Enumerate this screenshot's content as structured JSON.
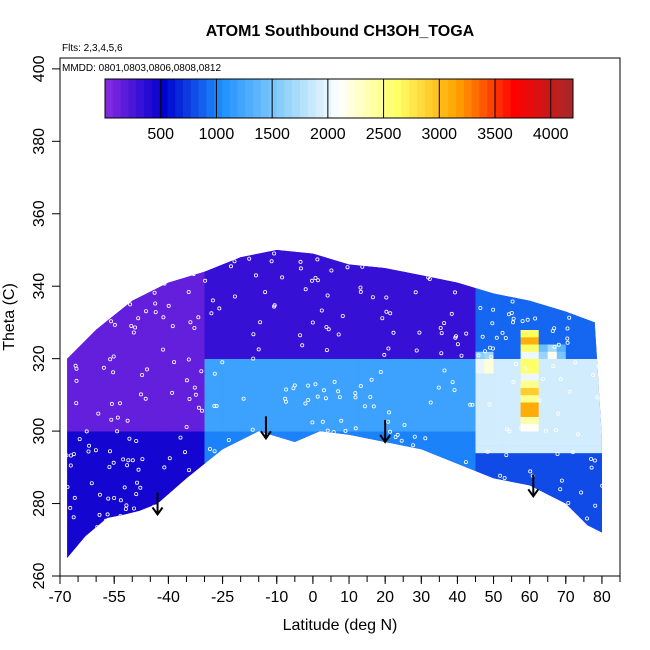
{
  "chart_data": {
    "type": "heatmap",
    "title": "ATOM1 Southbound CH3OH_TOGA",
    "flights_note": "Flts: 2,3,4,5,6",
    "dates_note": "MMDD: 0801,0803,0806,0808,0812",
    "xlabel": "Latitude (deg N)",
    "ylabel": "Theta (C)",
    "xlim": [
      -70,
      85
    ],
    "ylim": [
      260,
      403
    ],
    "x_ticks": [
      -70,
      -55,
      -40,
      -25,
      -10,
      0,
      10,
      20,
      30,
      40,
      50,
      60,
      70,
      80
    ],
    "y_ticks": [
      260,
      280,
      300,
      320,
      340,
      360,
      380,
      400
    ],
    "colorbar": {
      "min": 0,
      "max": 4200,
      "ticks": [
        500,
        1000,
        1500,
        2000,
        2500,
        3000,
        3500,
        4000
      ],
      "colors": [
        "#8a2be2",
        "#0000cd",
        "#1e90ff",
        "#87cefa",
        "#ffffff",
        "#ffff66",
        "#ffa500",
        "#ff0000",
        "#a52a2a"
      ]
    },
    "boundary_top": [
      {
        "lat": -68,
        "theta": 320
      },
      {
        "lat": -60,
        "theta": 328
      },
      {
        "lat": -50,
        "theta": 336
      },
      {
        "lat": -40,
        "theta": 341
      },
      {
        "lat": -30,
        "theta": 344
      },
      {
        "lat": -20,
        "theta": 348
      },
      {
        "lat": -10,
        "theta": 350
      },
      {
        "lat": 0,
        "theta": 349
      },
      {
        "lat": 10,
        "theta": 346
      },
      {
        "lat": 20,
        "theta": 345
      },
      {
        "lat": 30,
        "theta": 343
      },
      {
        "lat": 40,
        "theta": 341
      },
      {
        "lat": 50,
        "theta": 338
      },
      {
        "lat": 60,
        "theta": 336
      },
      {
        "lat": 70,
        "theta": 333
      },
      {
        "lat": 78,
        "theta": 330
      },
      {
        "lat": 80,
        "theta": 298
      }
    ],
    "boundary_bottom": [
      {
        "lat": 80,
        "theta": 272
      },
      {
        "lat": 76,
        "theta": 274
      },
      {
        "lat": 70,
        "theta": 280
      },
      {
        "lat": 60,
        "theta": 285
      },
      {
        "lat": 50,
        "theta": 287
      },
      {
        "lat": 40,
        "theta": 291
      },
      {
        "lat": 30,
        "theta": 295
      },
      {
        "lat": 20,
        "theta": 297
      },
      {
        "lat": 10,
        "theta": 299
      },
      {
        "lat": 2,
        "theta": 300
      },
      {
        "lat": -5,
        "theta": 297
      },
      {
        "lat": -15,
        "theta": 300
      },
      {
        "lat": -25,
        "theta": 295
      },
      {
        "lat": -35,
        "theta": 287
      },
      {
        "lat": -43,
        "theta": 280
      },
      {
        "lat": -48,
        "theta": 278
      },
      {
        "lat": -52,
        "theta": 277
      },
      {
        "lat": -57,
        "theta": 276
      },
      {
        "lat": -63,
        "theta": 271
      },
      {
        "lat": -68,
        "theta": 265
      }
    ],
    "field_regions": [
      {
        "lat_min": -70,
        "lat_max": -30,
        "theta_min": 300,
        "theta_max": 352,
        "value": 150
      },
      {
        "lat_min": -30,
        "lat_max": 45,
        "theta_min": 320,
        "theta_max": 352,
        "value": 320
      },
      {
        "lat_min": -70,
        "lat_max": -30,
        "theta_min": 260,
        "theta_max": 300,
        "value": 450
      },
      {
        "lat_min": -30,
        "lat_max": 45,
        "theta_min": 300,
        "theta_max": 320,
        "value": 1200
      },
      {
        "lat_min": -30,
        "lat_max": 45,
        "theta_min": 260,
        "theta_max": 300,
        "value": 1000
      },
      {
        "lat_min": 45,
        "lat_max": 85,
        "theta_min": 320,
        "theta_max": 352,
        "value": 900
      },
      {
        "lat_min": 45,
        "lat_max": 85,
        "theta_min": 295,
        "theta_max": 320,
        "value": 1900
      },
      {
        "lat_min": 45,
        "lat_max": 85,
        "theta_min": 260,
        "theta_max": 295,
        "value": 800
      }
    ],
    "hotspots": [
      {
        "lat": 48,
        "theta": 318,
        "value": 2600
      },
      {
        "lat": 60,
        "theta": 325,
        "value": 3600
      },
      {
        "lat": 60,
        "theta": 318,
        "value": 3200
      },
      {
        "lat": 60,
        "theta": 311,
        "value": 3400
      },
      {
        "lat": 60,
        "theta": 306,
        "value": 3800
      },
      {
        "lat": 60,
        "theta": 302,
        "value": 2600
      },
      {
        "lat": 66,
        "theta": 321,
        "value": 2200
      }
    ],
    "arrows": [
      {
        "lat": -43,
        "theta": 277
      },
      {
        "lat": -13,
        "theta": 298
      },
      {
        "lat": 20,
        "theta": 297
      },
      {
        "lat": 61,
        "theta": 282
      }
    ]
  }
}
